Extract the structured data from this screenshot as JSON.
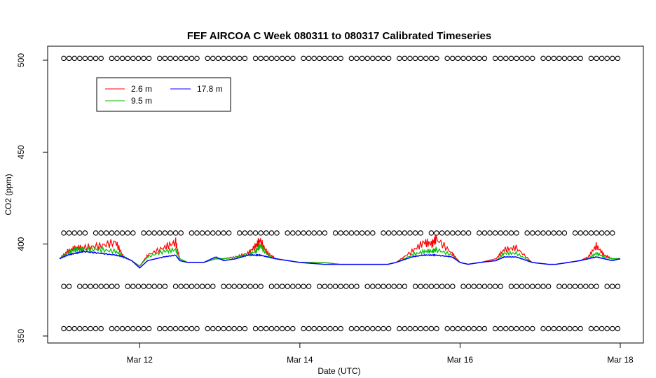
{
  "chart_data": {
    "type": "line",
    "title": "FEF AIRCOA C  Week 080311 to 080317  Calibrated Timeseries",
    "xlabel": "Date (UTC)",
    "ylabel": "CO2 (ppm)",
    "x_unit": "days (Mar)",
    "xlim": [
      11.0,
      18.0
    ],
    "ylim": [
      350,
      500
    ],
    "x_ticks": [
      {
        "value": 12,
        "label": "Mar 12"
      },
      {
        "value": 14,
        "label": "Mar 14"
      },
      {
        "value": 16,
        "label": "Mar 16"
      },
      {
        "value": 18,
        "label": "Mar 18"
      }
    ],
    "y_ticks": [
      {
        "value": 350,
        "label": "350"
      },
      {
        "value": 400,
        "label": "400"
      },
      {
        "value": 450,
        "label": "450"
      },
      {
        "value": 500,
        "label": "500"
      }
    ],
    "grid": false,
    "legend_position": "top-left",
    "series": [
      {
        "name": "2.6 m",
        "color": "#ff0000",
        "x": [
          11.0,
          11.1,
          11.2,
          11.3,
          11.5,
          11.7,
          11.8,
          11.9,
          12.0,
          12.1,
          12.3,
          12.45,
          12.5,
          12.6,
          12.8,
          12.95,
          13.05,
          13.2,
          13.35,
          13.45,
          13.5,
          13.6,
          13.7,
          13.85,
          14.0,
          14.3,
          14.5,
          14.7,
          14.9,
          15.1,
          15.2,
          15.4,
          15.55,
          15.65,
          15.7,
          15.9,
          16.0,
          16.1,
          16.25,
          16.45,
          16.55,
          16.7,
          16.9,
          17.1,
          17.2,
          17.35,
          17.5,
          17.6,
          17.7,
          17.8,
          17.9,
          18.0
        ],
        "y": [
          392,
          396,
          398,
          398,
          399,
          401,
          393,
          391,
          388,
          394,
          398,
          401,
          392,
          390,
          390,
          392,
          392,
          393,
          395,
          399,
          402,
          395,
          392,
          391,
          390,
          390,
          389,
          389,
          389,
          389,
          390,
          396,
          401,
          400,
          403,
          395,
          390,
          389,
          390,
          392,
          397,
          398,
          390,
          389,
          389,
          390,
          391,
          393,
          399,
          394,
          392,
          392
        ]
      },
      {
        "name": "9.5 m",
        "color": "#00c000",
        "x": [
          11.0,
          11.1,
          11.2,
          11.3,
          11.5,
          11.7,
          11.8,
          11.9,
          12.0,
          12.1,
          12.3,
          12.45,
          12.5,
          12.6,
          12.8,
          12.95,
          13.05,
          13.2,
          13.35,
          13.45,
          13.5,
          13.6,
          13.7,
          13.85,
          14.0,
          14.3,
          14.5,
          14.7,
          14.9,
          15.1,
          15.2,
          15.4,
          15.55,
          15.65,
          15.7,
          15.9,
          16.0,
          16.1,
          16.25,
          16.45,
          16.55,
          16.7,
          16.9,
          17.1,
          17.2,
          17.35,
          17.5,
          17.6,
          17.7,
          17.8,
          17.9,
          18.0
        ],
        "y": [
          392,
          395,
          397,
          397,
          397,
          396,
          393,
          391,
          388,
          393,
          396,
          397,
          392,
          390,
          390,
          392,
          392,
          393,
          394,
          396,
          399,
          394,
          392,
          391,
          390,
          390,
          389,
          389,
          389,
          389,
          390,
          394,
          396,
          396,
          397,
          394,
          390,
          389,
          390,
          391,
          395,
          395,
          390,
          389,
          389,
          390,
          391,
          392,
          395,
          393,
          392,
          392
        ]
      },
      {
        "name": "17.8 m",
        "color": "#0000ff",
        "x": [
          11.0,
          11.1,
          11.2,
          11.3,
          11.5,
          11.7,
          11.8,
          11.9,
          12.0,
          12.1,
          12.3,
          12.45,
          12.5,
          12.6,
          12.8,
          12.95,
          13.05,
          13.2,
          13.35,
          13.45,
          13.5,
          13.6,
          13.7,
          13.85,
          14.0,
          14.3,
          14.5,
          14.7,
          14.9,
          15.1,
          15.2,
          15.4,
          15.55,
          15.65,
          15.7,
          15.9,
          16.0,
          16.1,
          16.25,
          16.45,
          16.55,
          16.7,
          16.9,
          17.1,
          17.2,
          17.35,
          17.5,
          17.6,
          17.7,
          17.8,
          17.9,
          18.0
        ],
        "y": [
          392,
          394,
          395,
          396,
          395,
          394,
          393,
          391,
          387,
          391,
          393,
          394,
          391,
          390,
          390,
          393,
          391,
          392,
          394,
          394,
          394,
          393,
          392,
          391,
          390,
          389,
          389,
          389,
          389,
          389,
          390,
          393,
          394,
          394,
          394,
          393,
          390,
          389,
          390,
          391,
          393,
          393,
          390,
          389,
          389,
          390,
          391,
          392,
          393,
          392,
          391,
          392
        ]
      }
    ],
    "marker_rows": [
      {
        "y": 501
      },
      {
        "y": 406
      },
      {
        "y": 377
      },
      {
        "y": 354
      }
    ]
  }
}
